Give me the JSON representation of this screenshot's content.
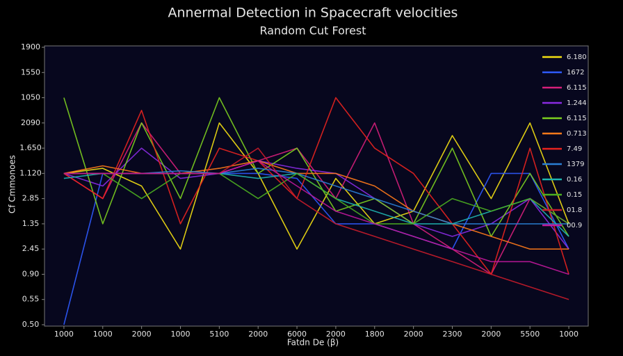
{
  "chart_data": {
    "type": "line",
    "title": "Annermal Detection in Spacecraft velocities",
    "subtitle": "Random Cut Forest",
    "x_label": "Fatdn De (β)",
    "y_label": "Cf Cmmonoes",
    "categories": [
      "1000",
      "1000",
      "2000",
      "1000",
      "5100",
      "2000",
      "6000",
      "2000",
      "1800",
      "2000",
      "2300",
      "2000",
      "5500",
      "1000"
    ],
    "ylim": [
      0,
      11
    ],
    "yticks": [
      {
        "value": 0,
        "label": "0.50"
      },
      {
        "value": 1,
        "label": "0.55"
      },
      {
        "value": 2,
        "label": "0.90"
      },
      {
        "value": 3,
        "label": "2.45"
      },
      {
        "value": 4,
        "label": "1.35"
      },
      {
        "value": 5,
        "label": "2.85"
      },
      {
        "value": 6,
        "label": "1.120"
      },
      {
        "value": 7,
        "label": "1.650"
      },
      {
        "value": 8,
        "label": "2090"
      },
      {
        "value": 9,
        "label": "1050"
      },
      {
        "value": 10,
        "label": "1550"
      },
      {
        "value": 11,
        "label": "1900"
      }
    ],
    "legend_position": "upper right",
    "series": [
      {
        "name": "6.180",
        "color": "#f4e012",
        "values": [
          6,
          6.2,
          5.5,
          3,
          8,
          6,
          3,
          5.8,
          4,
          4.5,
          7.5,
          5,
          8,
          4
        ]
      },
      {
        "name": "1672",
        "color": "#2f5bff",
        "values": [
          0,
          6,
          6,
          6,
          6,
          6,
          5.8,
          4,
          4,
          3.5,
          3,
          6,
          6,
          3
        ]
      },
      {
        "name": "6.115",
        "color": "#d61f7a",
        "values": [
          6,
          5,
          8,
          6,
          6,
          6.5,
          7,
          5,
          8,
          4,
          3,
          2,
          5,
          4
        ]
      },
      {
        "name": "1.244",
        "color": "#8a2be2",
        "values": [
          6,
          5.5,
          7,
          5.8,
          6,
          6.5,
          6.2,
          6,
          5,
          4,
          3.5,
          4,
          5,
          3
        ]
      },
      {
        "name": "6.115",
        "color": "#7ccf1f",
        "values": [
          9,
          4,
          8,
          5,
          9,
          6,
          7,
          4.5,
          5,
          4,
          7,
          3.5,
          6,
          3.5
        ]
      },
      {
        "name": "0.713",
        "color": "#ff7a1a",
        "values": [
          6,
          6.3,
          6,
          6,
          6.2,
          6.5,
          6,
          6,
          5.5,
          4.5,
          4,
          3.5,
          3,
          3
        ]
      },
      {
        "name": "7.49",
        "color": "#e8231f",
        "values": [
          6,
          5,
          8.5,
          4,
          7,
          6.5,
          5,
          9,
          7,
          6,
          4,
          2,
          7,
          2
        ]
      },
      {
        "name": "1379",
        "color": "#2a7fd4",
        "values": [
          6,
          6,
          6,
          6.1,
          6,
          6.2,
          6,
          5.5,
          5,
          4.5,
          4,
          4,
          4,
          4
        ]
      },
      {
        "name": "0.16",
        "color": "#1fb5b0",
        "values": [
          5.8,
          6,
          6,
          6,
          6,
          5.8,
          6,
          5,
          4.5,
          4,
          4,
          4.5,
          5,
          3.5
        ]
      },
      {
        "name": "0.15",
        "color": "#4caf20",
        "values": [
          6,
          6,
          5,
          6,
          6,
          5,
          6,
          5,
          4,
          4,
          5,
          4.5,
          5,
          4
        ]
      },
      {
        "name": "01.8",
        "color": "#c81c2a",
        "values": [
          6,
          6,
          6,
          6,
          6,
          7,
          5,
          4,
          3.5,
          3,
          2.5,
          2,
          1.5,
          1
        ]
      },
      {
        "name": "00.9",
        "color": "#c0189a",
        "values": [
          6,
          6,
          6,
          6,
          6,
          6.5,
          5.5,
          4.5,
          4,
          3.5,
          3,
          2.5,
          2.5,
          2
        ]
      }
    ]
  }
}
